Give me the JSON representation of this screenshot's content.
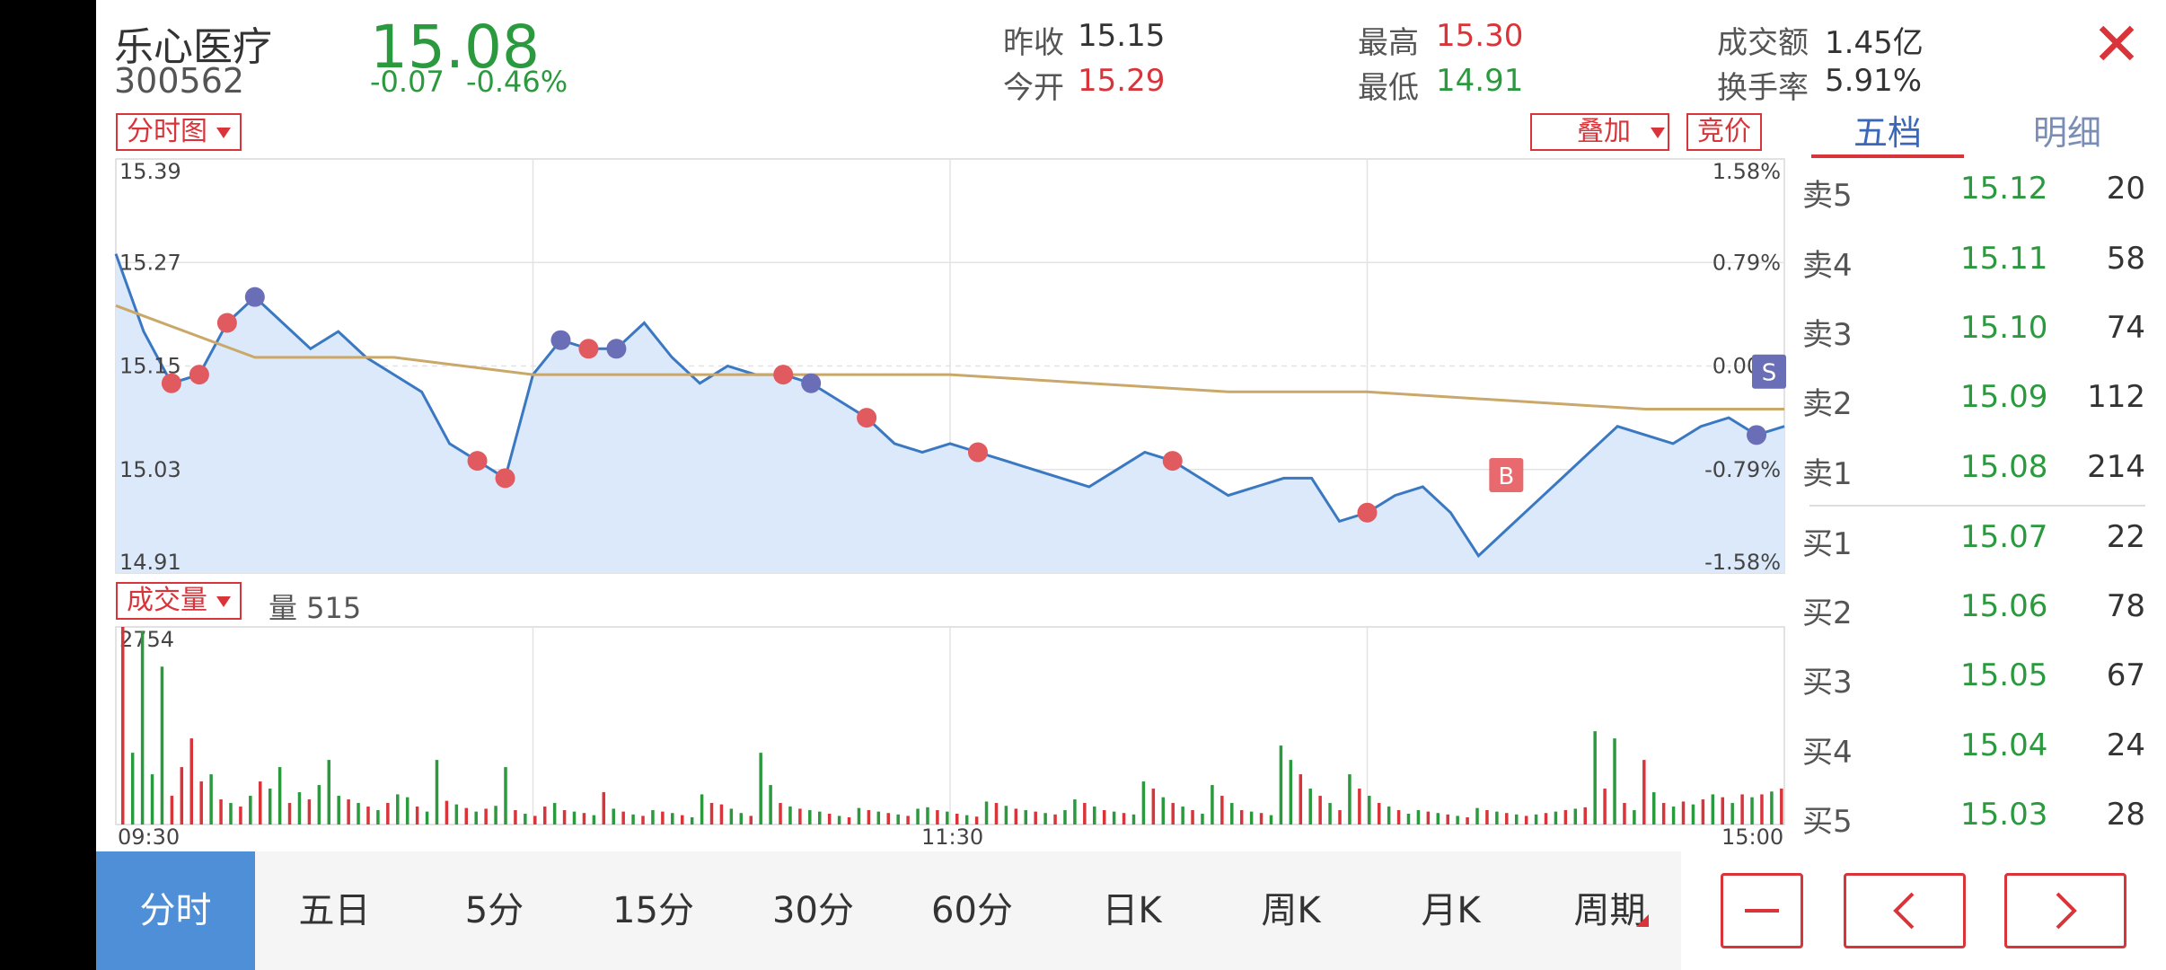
{
  "header": {
    "name": "乐心医疗",
    "code": "300562",
    "price": "15.08",
    "change": "-0.07",
    "change_pct": "-0.46%",
    "prev_close_label": "昨收",
    "prev_close": "15.15",
    "open_label": "今开",
    "open": "15.29",
    "high_label": "最高",
    "high": "15.30",
    "low_label": "最低",
    "low": "14.91",
    "turnover_amt_label": "成交额",
    "turnover_amt": "1.45亿",
    "turnover_rate_label": "换手率",
    "turnover_rate": "5.91%",
    "close_icon": "close-icon"
  },
  "controls": {
    "chart_type": "分时图",
    "overlay": "叠加",
    "auction": "竞价",
    "indicator": "成交量",
    "volume_label": "量 515"
  },
  "tabs": {
    "level5": "五档",
    "detail": "明细"
  },
  "orderbook": {
    "asks": [
      {
        "label": "卖5",
        "price": "15.12",
        "vol": "20"
      },
      {
        "label": "卖4",
        "price": "15.11",
        "vol": "58"
      },
      {
        "label": "卖3",
        "price": "15.10",
        "vol": "74"
      },
      {
        "label": "卖2",
        "price": "15.09",
        "vol": "112"
      },
      {
        "label": "卖1",
        "price": "15.08",
        "vol": "214"
      }
    ],
    "bids": [
      {
        "label": "买1",
        "price": "15.07",
        "vol": "22"
      },
      {
        "label": "买2",
        "price": "15.06",
        "vol": "78"
      },
      {
        "label": "买3",
        "price": "15.05",
        "vol": "67"
      },
      {
        "label": "买4",
        "price": "15.04",
        "vol": "24"
      },
      {
        "label": "买5",
        "price": "15.03",
        "vol": "28"
      }
    ]
  },
  "period_tabs": [
    "分时",
    "五日",
    "5分",
    "15分",
    "30分",
    "60分",
    "日K",
    "周K",
    "月K",
    "周期"
  ],
  "nav_icons": [
    "minus-icon",
    "chevron-left-icon",
    "chevron-right-icon"
  ],
  "colors": {
    "up": "#d8343a",
    "down": "#2b9a3e",
    "price_line": "#3a78c2",
    "avg_line": "#c9a86a",
    "fill": "#dbe9fa",
    "accent": "#4e8fd7"
  },
  "chart_data": [
    {
      "type": "line",
      "x_ticks": [
        "09:30",
        "11:30",
        "15:00"
      ],
      "y_left_ticks": [
        "15.39",
        "15.27",
        "15.15",
        "15.03",
        "14.91"
      ],
      "y_right_ticks": [
        "1.58%",
        "0.79%",
        "0.00%",
        "-0.79%",
        "-1.58%"
      ],
      "ylim": [
        14.91,
        15.39
      ],
      "series": [
        {
          "x": [
            0,
            4,
            8,
            12,
            16,
            20,
            24,
            28,
            32,
            36,
            40,
            44,
            48,
            52,
            56,
            60,
            64,
            68,
            72,
            76,
            80,
            84,
            88,
            92,
            96,
            100,
            104,
            108,
            112,
            116,
            120,
            124,
            128,
            132,
            136,
            140,
            144,
            148,
            152,
            156,
            160,
            164,
            168,
            172,
            176,
            180,
            184,
            188,
            192,
            196,
            200,
            204,
            208,
            212,
            216,
            220,
            224,
            228,
            232,
            236,
            240
          ],
          "values": [
            15.28,
            15.19,
            15.13,
            15.14,
            15.2,
            15.23,
            15.2,
            15.17,
            15.19,
            15.16,
            15.14,
            15.12,
            15.06,
            15.04,
            15.02,
            15.14,
            15.18,
            15.17,
            15.17,
            15.2,
            15.16,
            15.13,
            15.15,
            15.14,
            15.14,
            15.13,
            15.11,
            15.09,
            15.06,
            15.05,
            15.06,
            15.05,
            15.04,
            15.03,
            15.02,
            15.01,
            15.03,
            15.05,
            15.04,
            15.02,
            15.0,
            15.01,
            15.02,
            15.02,
            14.97,
            14.98,
            15.0,
            15.01,
            14.98,
            14.93,
            14.96,
            14.99,
            15.02,
            15.05,
            15.08,
            15.07,
            15.06,
            15.08,
            15.09,
            15.07,
            15.08
          ]
        },
        {
          "x": [
            0,
            20,
            40,
            60,
            80,
            100,
            120,
            140,
            160,
            180,
            200,
            220,
            240
          ],
          "values": [
            15.22,
            15.16,
            15.16,
            15.14,
            15.14,
            15.14,
            15.14,
            15.13,
            15.12,
            15.12,
            15.11,
            15.1,
            15.1
          ]
        }
      ]
    },
    {
      "type": "bar",
      "ylim": [
        0,
        2754
      ],
      "y_max_label": "2754",
      "bars": [
        [
          2754,
          "u"
        ],
        [
          1000,
          "d"
        ],
        [
          2700,
          "d"
        ],
        [
          700,
          "d"
        ],
        [
          2200,
          "d"
        ],
        [
          400,
          "u"
        ],
        [
          800,
          "u"
        ],
        [
          1200,
          "u"
        ],
        [
          600,
          "u"
        ],
        [
          700,
          "d"
        ],
        [
          350,
          "u"
        ],
        [
          300,
          "d"
        ],
        [
          250,
          "u"
        ],
        [
          400,
          "d"
        ],
        [
          600,
          "u"
        ],
        [
          500,
          "d"
        ],
        [
          800,
          "d"
        ],
        [
          300,
          "u"
        ],
        [
          450,
          "d"
        ],
        [
          350,
          "u"
        ],
        [
          550,
          "d"
        ],
        [
          900,
          "d"
        ],
        [
          400,
          "d"
        ],
        [
          350,
          "u"
        ],
        [
          300,
          "d"
        ],
        [
          250,
          "u"
        ],
        [
          200,
          "d"
        ],
        [
          300,
          "u"
        ],
        [
          420,
          "d"
        ],
        [
          380,
          "d"
        ],
        [
          250,
          "u"
        ],
        [
          180,
          "d"
        ],
        [
          900,
          "d"
        ],
        [
          330,
          "u"
        ],
        [
          280,
          "d"
        ],
        [
          230,
          "u"
        ],
        [
          180,
          "d"
        ],
        [
          220,
          "u"
        ],
        [
          260,
          "d"
        ],
        [
          800,
          "d"
        ],
        [
          200,
          "u"
        ],
        [
          150,
          "d"
        ],
        [
          120,
          "u"
        ],
        [
          250,
          "u"
        ],
        [
          300,
          "d"
        ],
        [
          200,
          "u"
        ],
        [
          180,
          "d"
        ],
        [
          160,
          "u"
        ],
        [
          130,
          "d"
        ],
        [
          450,
          "u"
        ],
        [
          220,
          "d"
        ],
        [
          180,
          "u"
        ],
        [
          140,
          "d"
        ],
        [
          120,
          "u"
        ],
        [
          200,
          "d"
        ],
        [
          180,
          "u"
        ],
        [
          160,
          "d"
        ],
        [
          130,
          "u"
        ],
        [
          100,
          "d"
        ],
        [
          420,
          "d"
        ],
        [
          300,
          "u"
        ],
        [
          280,
          "u"
        ],
        [
          220,
          "d"
        ],
        [
          160,
          "d"
        ],
        [
          120,
          "u"
        ],
        [
          1000,
          "d"
        ],
        [
          550,
          "d"
        ],
        [
          300,
          "u"
        ],
        [
          250,
          "d"
        ],
        [
          220,
          "u"
        ],
        [
          200,
          "d"
        ],
        [
          180,
          "d"
        ],
        [
          150,
          "u"
        ],
        [
          120,
          "d"
        ],
        [
          100,
          "u"
        ],
        [
          230,
          "d"
        ],
        [
          200,
          "u"
        ],
        [
          180,
          "d"
        ],
        [
          160,
          "u"
        ],
        [
          140,
          "d"
        ],
        [
          120,
          "u"
        ],
        [
          220,
          "d"
        ],
        [
          240,
          "d"
        ],
        [
          200,
          "u"
        ],
        [
          180,
          "d"
        ],
        [
          150,
          "u"
        ],
        [
          130,
          "d"
        ],
        [
          110,
          "u"
        ],
        [
          320,
          "d"
        ],
        [
          300,
          "u"
        ],
        [
          260,
          "d"
        ],
        [
          220,
          "u"
        ],
        [
          200,
          "d"
        ],
        [
          180,
          "u"
        ],
        [
          160,
          "d"
        ],
        [
          140,
          "u"
        ],
        [
          200,
          "d"
        ],
        [
          350,
          "d"
        ],
        [
          300,
          "u"
        ],
        [
          250,
          "d"
        ],
        [
          200,
          "u"
        ],
        [
          180,
          "d"
        ],
        [
          160,
          "u"
        ],
        [
          140,
          "d"
        ],
        [
          600,
          "d"
        ],
        [
          500,
          "u"
        ],
        [
          380,
          "d"
        ],
        [
          300,
          "u"
        ],
        [
          250,
          "d"
        ],
        [
          200,
          "u"
        ],
        [
          150,
          "d"
        ],
        [
          550,
          "d"
        ],
        [
          400,
          "u"
        ],
        [
          300,
          "d"
        ],
        [
          200,
          "u"
        ],
        [
          180,
          "d"
        ],
        [
          160,
          "u"
        ],
        [
          130,
          "d"
        ],
        [
          1100,
          "d"
        ],
        [
          900,
          "d"
        ],
        [
          700,
          "u"
        ],
        [
          500,
          "d"
        ],
        [
          400,
          "u"
        ],
        [
          300,
          "d"
        ],
        [
          200,
          "u"
        ],
        [
          700,
          "d"
        ],
        [
          500,
          "u"
        ],
        [
          400,
          "d"
        ],
        [
          300,
          "u"
        ],
        [
          250,
          "d"
        ],
        [
          200,
          "u"
        ],
        [
          150,
          "d"
        ],
        [
          200,
          "d"
        ],
        [
          180,
          "u"
        ],
        [
          160,
          "d"
        ],
        [
          140,
          "u"
        ],
        [
          120,
          "d"
        ],
        [
          100,
          "u"
        ],
        [
          230,
          "d"
        ],
        [
          200,
          "u"
        ],
        [
          180,
          "d"
        ],
        [
          160,
          "u"
        ],
        [
          140,
          "d"
        ],
        [
          120,
          "u"
        ],
        [
          140,
          "d"
        ],
        [
          160,
          "u"
        ],
        [
          180,
          "d"
        ],
        [
          200,
          "u"
        ],
        [
          220,
          "d"
        ],
        [
          240,
          "u"
        ],
        [
          1300,
          "d"
        ],
        [
          500,
          "u"
        ],
        [
          1200,
          "d"
        ],
        [
          300,
          "u"
        ],
        [
          200,
          "d"
        ],
        [
          900,
          "u"
        ],
        [
          450,
          "d"
        ],
        [
          300,
          "u"
        ],
        [
          250,
          "d"
        ],
        [
          320,
          "u"
        ],
        [
          280,
          "d"
        ],
        [
          350,
          "u"
        ],
        [
          420,
          "d"
        ],
        [
          380,
          "u"
        ],
        [
          300,
          "d"
        ],
        [
          420,
          "u"
        ],
        [
          380,
          "d"
        ],
        [
          420,
          "u"
        ],
        [
          460,
          "d"
        ],
        [
          500,
          "u"
        ]
      ]
    }
  ]
}
